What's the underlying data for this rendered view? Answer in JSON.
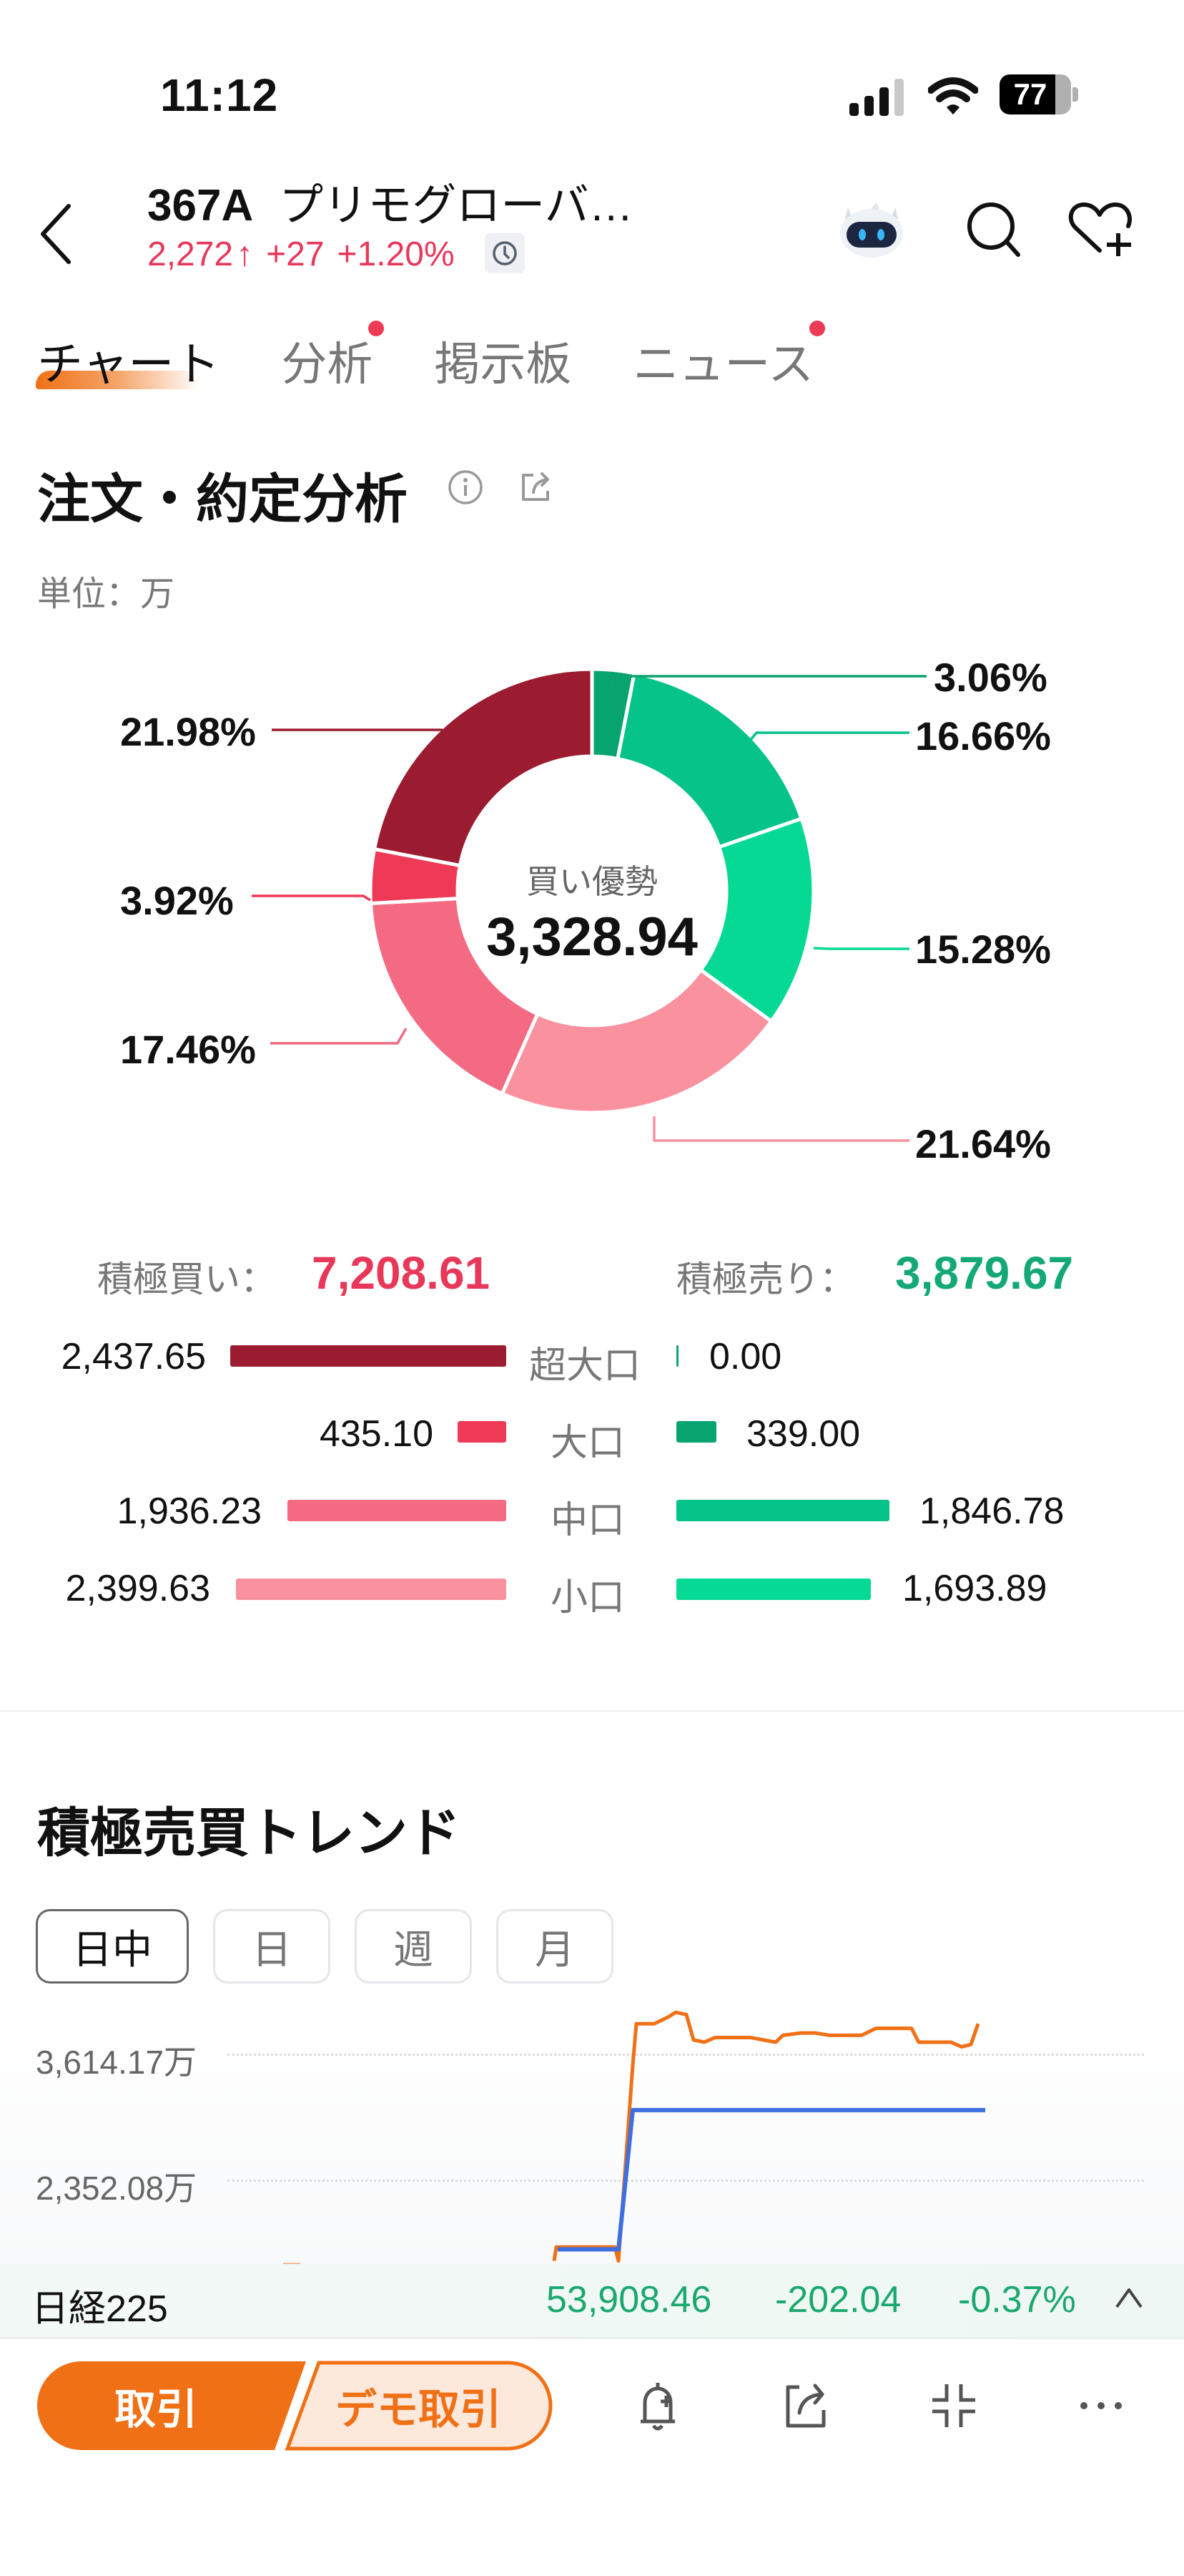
{
  "status_bar": {
    "time": "11:12",
    "battery": "77"
  },
  "header": {
    "code": "367A",
    "name": "プリモグローバ…",
    "price": "2,272",
    "arrow": "↑",
    "change": "+27",
    "change_pct": "+1.20%",
    "price_color": "#e8385a"
  },
  "tabs": [
    {
      "label": "チャート",
      "active": true,
      "dot": false
    },
    {
      "label": "分析",
      "active": false,
      "dot": true
    },
    {
      "label": "掲示板",
      "active": false,
      "dot": false
    },
    {
      "label": "ニュース",
      "active": false,
      "dot": true
    }
  ],
  "order_analysis": {
    "title": "注文・約定分析",
    "unit": "単位：万",
    "center_label": "買い優勢",
    "center_value": "3,328.94",
    "buy_total_label": "積極買い：",
    "buy_total": "7,208.61",
    "sell_total_label": "積極売り：",
    "sell_total": "3,879.67",
    "rows": [
      {
        "category": "超大口",
        "buy": "2,437.65",
        "sell": "0.00"
      },
      {
        "category": "大口",
        "buy": "435.10",
        "sell": "339.00"
      },
      {
        "category": "中口",
        "buy": "1,936.23",
        "sell": "1,846.78"
      },
      {
        "category": "小口",
        "buy": "2,399.63",
        "sell": "1,693.89"
      }
    ],
    "colors": {
      "buy_super": "#9b1c30",
      "buy_large": "#ef3a57",
      "buy_mid": "#f46a82",
      "buy_small": "#fa919f",
      "sell_super": "#0ea36e",
      "sell_large": "#08a470",
      "sell_mid": "#06c389",
      "sell_small": "#06d993"
    }
  },
  "chart_data": [
    {
      "type": "pie",
      "title": "注文・約定分析",
      "subtitle": "単位：万",
      "center_label": "買い優勢",
      "center_value": "3,328.94",
      "order": "clockwise from 12 o'clock",
      "categories": [
        "売り 超大口",
        "売り 大口",
        "売り 中口",
        "売り 小口",
        "買い 小口",
        "買い 中口",
        "買い 大口",
        "買い 超大口"
      ],
      "values": [
        0.0,
        3.06,
        16.66,
        15.28,
        21.64,
        17.46,
        3.92,
        21.98
      ],
      "labels": [
        "",
        "3.06%",
        "16.66%",
        "15.28%",
        "21.64%",
        "17.46%",
        "3.92%",
        "21.98%"
      ],
      "colors": [
        "#0ea36e",
        "#08a470",
        "#06c389",
        "#06d993",
        "#fa919f",
        "#f46a82",
        "#ef3a57",
        "#9b1c30"
      ]
    },
    {
      "type": "bar",
      "title": "積極買い / 積極売り",
      "categories": [
        "超大口",
        "大口",
        "中口",
        "小口"
      ],
      "series": [
        {
          "name": "積極買い",
          "values": [
            2437.65,
            435.1,
            1936.23,
            2399.63
          ]
        },
        {
          "name": "積極売り",
          "values": [
            0.0,
            339.0,
            1846.78,
            1693.89
          ]
        }
      ],
      "totals": {
        "積極買い": 7208.61,
        "積極売り": 3879.67
      }
    },
    {
      "type": "line",
      "title": "積極売買トレンド",
      "period_selected": "日中",
      "y_ticks": [
        "3,614.17万",
        "2,352.08万"
      ],
      "grid": true,
      "series": [
        {
          "name": "orange",
          "color": "#f07016",
          "points": [
            [
              775,
              3180
            ],
            [
              778,
              3120
            ],
            [
              860,
              3120
            ],
            [
              865,
              3180
            ],
            [
              885,
              2330
            ],
            [
              890,
              2150
            ],
            [
              915,
              2150
            ],
            [
              935,
              2120
            ],
            [
              945,
              2100
            ],
            [
              960,
              2110
            ],
            [
              970,
              2220
            ],
            [
              985,
              2230
            ],
            [
              1000,
              2210
            ],
            [
              1050,
              2210
            ],
            [
              1085,
              2230
            ],
            [
              1095,
              2200
            ],
            [
              1120,
              2190
            ],
            [
              1140,
              2190
            ],
            [
              1160,
              2200
            ],
            [
              1205,
              2200
            ],
            [
              1225,
              2170
            ],
            [
              1275,
              2170
            ],
            [
              1285,
              2230
            ],
            [
              1330,
              2230
            ],
            [
              1345,
              2250
            ],
            [
              1358,
              2240
            ],
            [
              1368,
              2150
            ]
          ]
        },
        {
          "name": "blue",
          "color": "#3d6fe0",
          "points": [
            [
              780,
              3130
            ],
            [
              865,
              3130
            ],
            [
              885,
              2525
            ],
            [
              1378,
              2525
            ]
          ]
        }
      ]
    }
  ],
  "trend": {
    "title": "積極売買トレンド",
    "periods": [
      {
        "label": "日中",
        "active": true
      },
      {
        "label": "日",
        "active": false
      },
      {
        "label": "週",
        "active": false
      },
      {
        "label": "月",
        "active": false
      }
    ],
    "y_top": "3,614.17万",
    "y_mid": "2,352.08万"
  },
  "ticker": {
    "name": "日経225",
    "value": "53,908.46",
    "change": "-202.04",
    "change_pct": "-0.37%"
  },
  "bottom_bar": {
    "trade_label": "取引",
    "demo_label": "デモ取引"
  }
}
